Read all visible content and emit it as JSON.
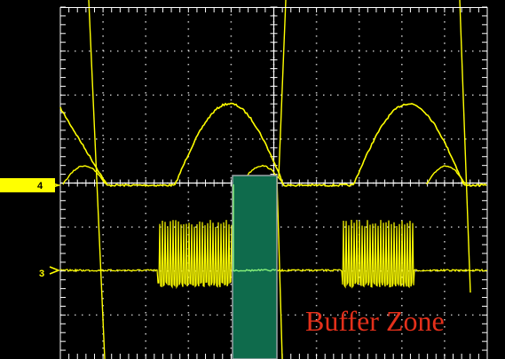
{
  "colors": {
    "background": "#000000",
    "frame": "#ffffff",
    "grid": "#bdbdbd",
    "trace": "#ffff00",
    "marker_bg": "#ffff00",
    "marker_text": "#000000",
    "buffer_fill": "#0f6b4c",
    "buffer_edge": "#9aa4a8",
    "buffer_trace": "#86f07a",
    "annotation": "#e4301b"
  },
  "screen": {
    "h_divisions": 10,
    "v_divisions": 8
  },
  "channels": [
    {
      "id": "channel-4",
      "label": "4",
      "highlighted": true
    },
    {
      "id": "channel-3",
      "label": "3",
      "highlighted": false
    }
  ],
  "annotation": {
    "label": "Buffer Zone"
  },
  "icons": {
    "channel_marker": "arrow-right-icon"
  }
}
